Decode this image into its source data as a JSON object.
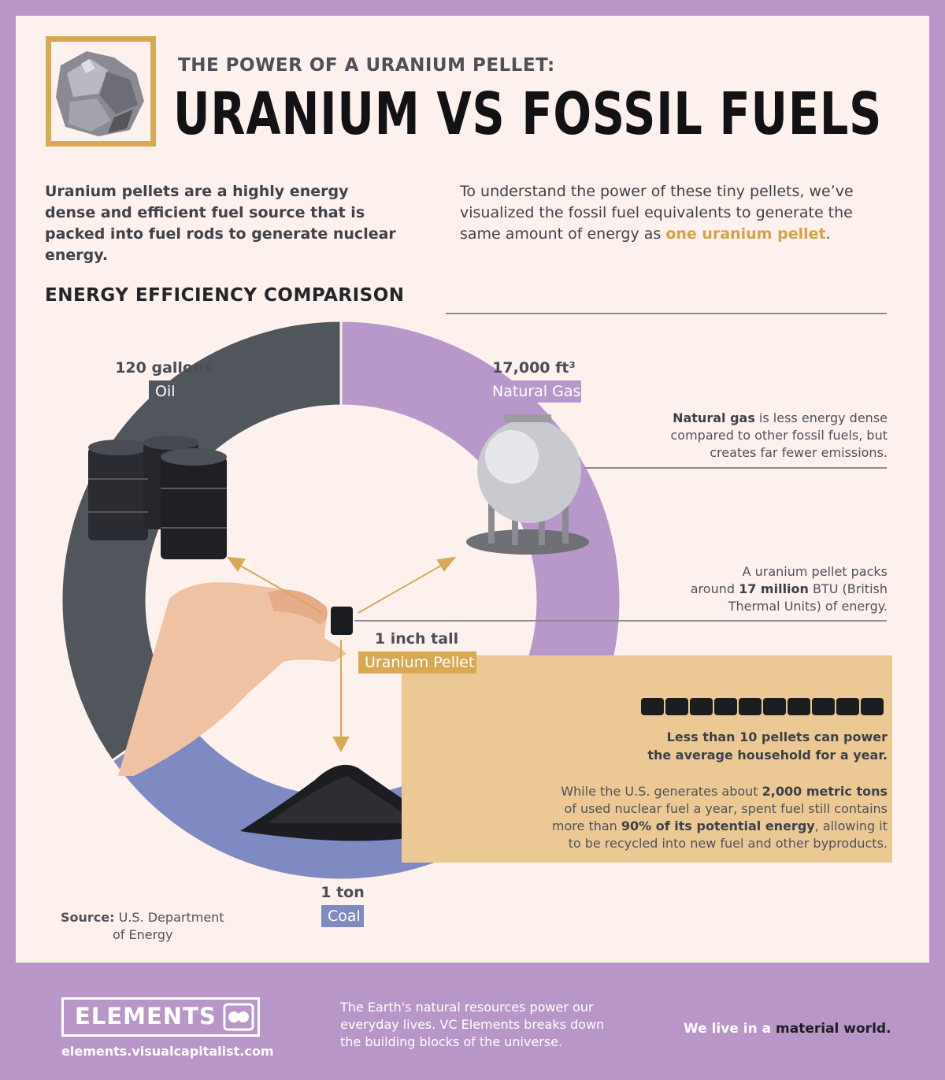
{
  "header": {
    "kicker": "THE POWER OF A URANIUM PELLET:",
    "title": "URANIUM VS FOSSIL FUELS"
  },
  "intro": {
    "left": "Uranium pellets are a highly energy dense and efficient fuel source that is packed into fuel rods to generate nuclear energy.",
    "right_before": "To understand the power of these tiny pellets, we’ve visualized the fossil fuel equivalents to generate the same amount of energy as ",
    "right_highlight": "one uranium pellet",
    "right_after": "."
  },
  "section_title": "ENERGY EFFICIENCY COMPARISON",
  "equivalents": {
    "oil": {
      "amount": "120 gallons",
      "name": "Oil",
      "color": "#51555c"
    },
    "gas": {
      "amount": "17,000 ft³",
      "name": "Natural Gas",
      "color": "#b898ca"
    },
    "coal": {
      "amount": "1 ton",
      "name": "Coal",
      "color": "#7f89c2"
    },
    "pellet": {
      "amount": "1 inch tall",
      "name": "Uranium Pellet",
      "color": "#d7a955"
    }
  },
  "notes": {
    "gas_bold": "Natural gas",
    "gas_rest_1": " is less energy dense",
    "gas_rest_2": "compared to other fossil fuels, but",
    "gas_rest_3": "creates far fewer emissions.",
    "pellet_1": "A uranium pellet packs",
    "pellet_2a": "around ",
    "pellet_2b": "17 million",
    "pellet_2c": " BTU (British",
    "pellet_3": "Thermal Units) of energy.",
    "box_headline_1": "Less than 10 pellets can power",
    "box_headline_2": "the average household for a year.",
    "box_1a": "While the U.S. generates about ",
    "box_1b": "2,000 metric tons",
    "box_2": "of used nuclear fuel a year, spent fuel still contains",
    "box_3a": "more than ",
    "box_3b": "90% of its potential energy",
    "box_3c": ", allowing it",
    "box_4": "to be recycled into new fuel and other byproducts."
  },
  "source": {
    "label": "Source:",
    "line1": "U.S. Department",
    "line2": "of Energy"
  },
  "footer": {
    "brand": "ELEMENTS",
    "url": "elements.visualcapitalist.com",
    "blurb": "The Earth's natural resources power our everyday lives. VC Elements breaks down the building blocks of the universe.",
    "tag_before": "We live in a ",
    "tag_bold": "material world."
  }
}
